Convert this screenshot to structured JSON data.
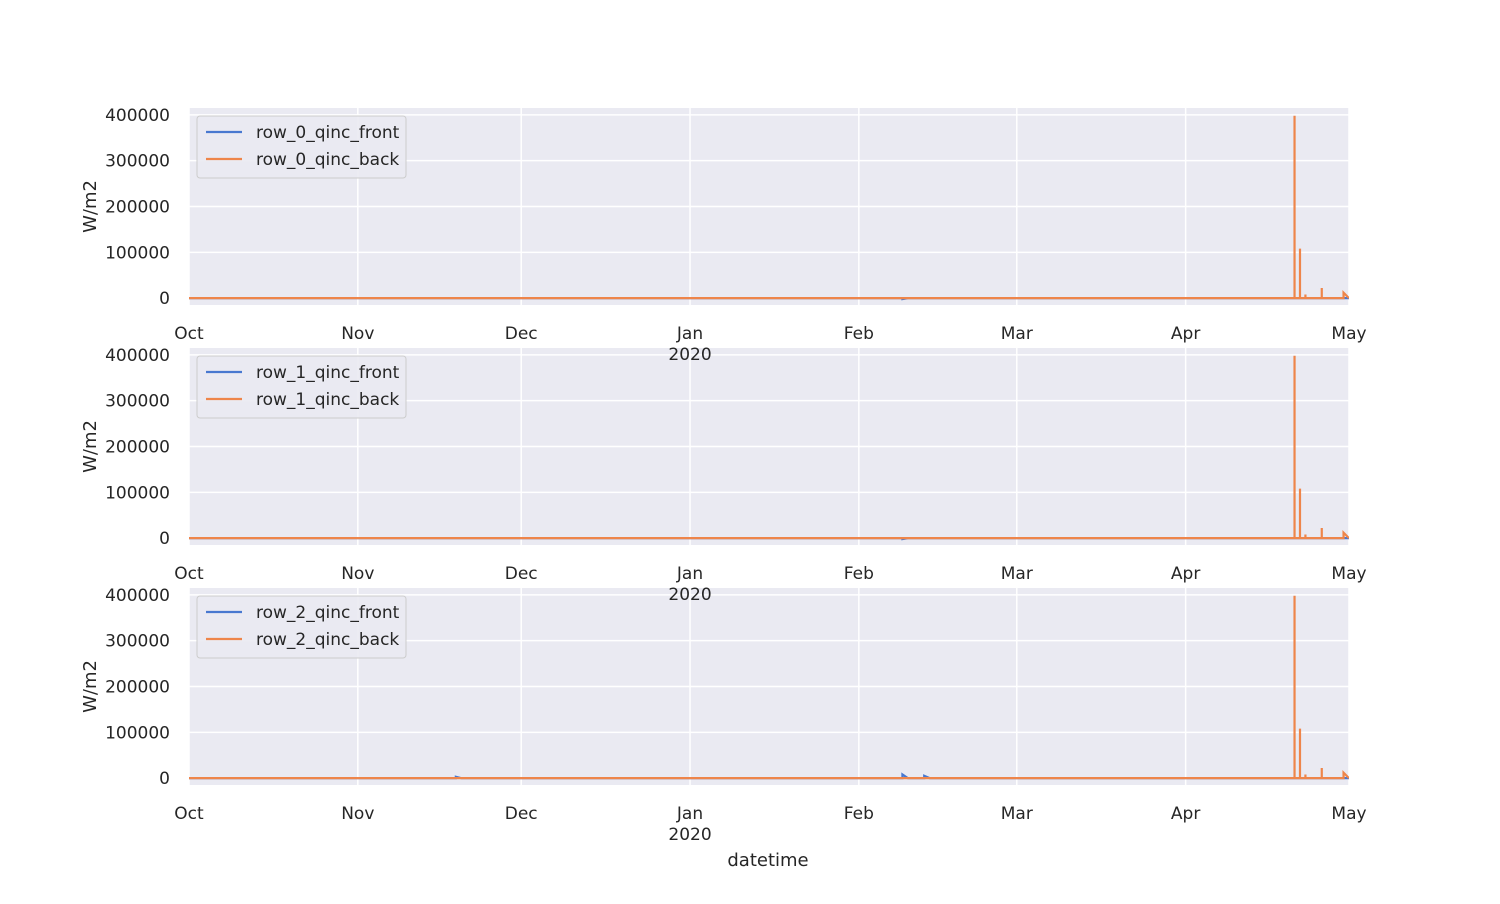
{
  "colors": {
    "background": "#eaeaf2",
    "grid": "#ffffff",
    "front_series": "#4878d0",
    "back_series": "#ee854a",
    "text": "#262626"
  },
  "shared_xlabel": "datetime",
  "chart_data": [
    {
      "type": "line",
      "ylabel": "W/m2",
      "xlim": [
        "2019-10-01",
        "2020-05-01"
      ],
      "ylim": [
        -15000,
        415000
      ],
      "x_ticks": [
        {
          "date": "2019-10-01",
          "label": "Oct"
        },
        {
          "date": "2019-11-01",
          "label": "Nov"
        },
        {
          "date": "2019-12-01",
          "label": "Dec"
        },
        {
          "date": "2020-01-01",
          "label": "Jan",
          "sublabel": "2020"
        },
        {
          "date": "2020-02-01",
          "label": "Feb"
        },
        {
          "date": "2020-03-01",
          "label": "Mar"
        },
        {
          "date": "2020-04-01",
          "label": "Apr"
        },
        {
          "date": "2020-05-01",
          "label": "May"
        }
      ],
      "y_ticks": [
        0,
        100000,
        200000,
        300000,
        400000
      ],
      "grid": true,
      "legend_position": "top-left",
      "series": [
        {
          "name": "row_0_qinc_front",
          "color": "#4878d0",
          "points": [
            [
              "2019-10-01",
              0
            ],
            [
              "2020-02-09",
              0
            ],
            [
              "2020-02-09",
              -2000
            ],
            [
              "2020-02-10",
              0
            ],
            [
              "2020-05-01",
              0
            ]
          ]
        },
        {
          "name": "row_0_qinc_back",
          "color": "#ee854a",
          "points": [
            [
              "2019-10-01",
              0
            ],
            [
              "2020-04-21",
              0
            ],
            [
              "2020-04-21",
              398000
            ],
            [
              "2020-04-21",
              0
            ],
            [
              "2020-04-22",
              0
            ],
            [
              "2020-04-22",
              108000
            ],
            [
              "2020-04-22",
              0
            ],
            [
              "2020-04-23",
              0
            ],
            [
              "2020-04-23",
              8000
            ],
            [
              "2020-04-23",
              0
            ],
            [
              "2020-04-26",
              0
            ],
            [
              "2020-04-26",
              22000
            ],
            [
              "2020-04-26",
              0
            ],
            [
              "2020-04-30",
              0
            ],
            [
              "2020-04-30",
              12000
            ],
            [
              "2020-05-01",
              0
            ]
          ]
        }
      ]
    },
    {
      "type": "line",
      "ylabel": "W/m2",
      "xlim": [
        "2019-10-01",
        "2020-05-01"
      ],
      "ylim": [
        -15000,
        415000
      ],
      "x_ticks": [
        {
          "date": "2019-10-01",
          "label": "Oct"
        },
        {
          "date": "2019-11-01",
          "label": "Nov"
        },
        {
          "date": "2019-12-01",
          "label": "Dec"
        },
        {
          "date": "2020-01-01",
          "label": "Jan",
          "sublabel": "2020"
        },
        {
          "date": "2020-02-01",
          "label": "Feb"
        },
        {
          "date": "2020-03-01",
          "label": "Mar"
        },
        {
          "date": "2020-04-01",
          "label": "Apr"
        },
        {
          "date": "2020-05-01",
          "label": "May"
        }
      ],
      "y_ticks": [
        0,
        100000,
        200000,
        300000,
        400000
      ],
      "grid": true,
      "legend_position": "top-left",
      "series": [
        {
          "name": "row_1_qinc_front",
          "color": "#4878d0",
          "points": [
            [
              "2019-10-01",
              0
            ],
            [
              "2020-02-09",
              0
            ],
            [
              "2020-02-09",
              -2000
            ],
            [
              "2020-02-10",
              0
            ],
            [
              "2020-05-01",
              0
            ]
          ]
        },
        {
          "name": "row_1_qinc_back",
          "color": "#ee854a",
          "points": [
            [
              "2019-10-01",
              0
            ],
            [
              "2020-04-21",
              0
            ],
            [
              "2020-04-21",
              398000
            ],
            [
              "2020-04-21",
              0
            ],
            [
              "2020-04-22",
              0
            ],
            [
              "2020-04-22",
              108000
            ],
            [
              "2020-04-22",
              0
            ],
            [
              "2020-04-23",
              0
            ],
            [
              "2020-04-23",
              8000
            ],
            [
              "2020-04-23",
              0
            ],
            [
              "2020-04-26",
              0
            ],
            [
              "2020-04-26",
              22000
            ],
            [
              "2020-04-26",
              0
            ],
            [
              "2020-04-30",
              0
            ],
            [
              "2020-04-30",
              12000
            ],
            [
              "2020-05-01",
              0
            ]
          ]
        }
      ]
    },
    {
      "type": "line",
      "ylabel": "W/m2",
      "xlim": [
        "2019-10-01",
        "2020-05-01"
      ],
      "ylim": [
        -15000,
        415000
      ],
      "x_ticks": [
        {
          "date": "2019-10-01",
          "label": "Oct"
        },
        {
          "date": "2019-11-01",
          "label": "Nov"
        },
        {
          "date": "2019-12-01",
          "label": "Dec"
        },
        {
          "date": "2020-01-01",
          "label": "Jan",
          "sublabel": "2020"
        },
        {
          "date": "2020-02-01",
          "label": "Feb"
        },
        {
          "date": "2020-03-01",
          "label": "Mar"
        },
        {
          "date": "2020-04-01",
          "label": "Apr"
        },
        {
          "date": "2020-05-01",
          "label": "May"
        }
      ],
      "y_ticks": [
        0,
        100000,
        200000,
        300000,
        400000
      ],
      "grid": true,
      "legend_position": "top-left",
      "series": [
        {
          "name": "row_2_qinc_front",
          "color": "#4878d0",
          "points": [
            [
              "2019-10-01",
              0
            ],
            [
              "2019-11-19",
              0
            ],
            [
              "2019-11-19",
              3000
            ],
            [
              "2019-11-20",
              0
            ],
            [
              "2020-02-09",
              0
            ],
            [
              "2020-02-09",
              8000
            ],
            [
              "2020-02-10",
              0
            ],
            [
              "2020-02-13",
              0
            ],
            [
              "2020-02-13",
              5000
            ],
            [
              "2020-02-14",
              0
            ],
            [
              "2020-05-01",
              0
            ]
          ]
        },
        {
          "name": "row_2_qinc_back",
          "color": "#ee854a",
          "points": [
            [
              "2019-10-01",
              0
            ],
            [
              "2020-04-21",
              0
            ],
            [
              "2020-04-21",
              398000
            ],
            [
              "2020-04-21",
              0
            ],
            [
              "2020-04-22",
              0
            ],
            [
              "2020-04-22",
              108000
            ],
            [
              "2020-04-22",
              0
            ],
            [
              "2020-04-23",
              0
            ],
            [
              "2020-04-23",
              8000
            ],
            [
              "2020-04-23",
              0
            ],
            [
              "2020-04-26",
              0
            ],
            [
              "2020-04-26",
              22000
            ],
            [
              "2020-04-26",
              0
            ],
            [
              "2020-04-30",
              0
            ],
            [
              "2020-04-30",
              12000
            ],
            [
              "2020-05-01",
              0
            ]
          ]
        }
      ]
    }
  ]
}
